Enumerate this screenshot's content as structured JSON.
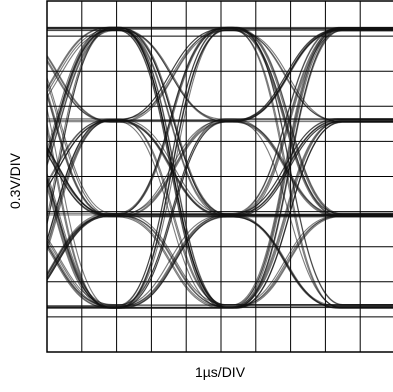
{
  "chart_data": {
    "type": "line",
    "subtype": "4-level eye diagram",
    "xlabel": "1µs/DIV",
    "ylabel": "0.3V/DIV",
    "x_divisions": 10,
    "y_divisions": 10,
    "grid": true,
    "levels_div": [
      0.8,
      3.4,
      6.1,
      8.7
    ],
    "symbol_period_div": 3.3,
    "crossing_times_div": [
      0.3,
      3.6,
      6.9
    ],
    "traces": 90,
    "trace_color": "#111111"
  }
}
